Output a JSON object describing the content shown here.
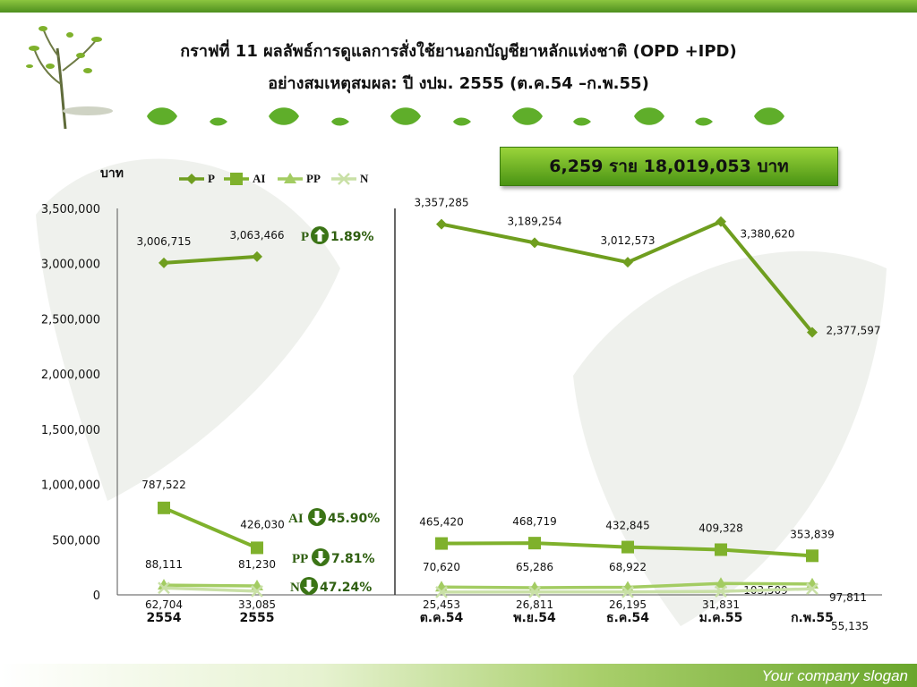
{
  "title": {
    "line1": "กราฟที่ 11 ผลลัพธ์การดูแลการสั่งใช้ยานอกบัญชียาหลักแห่งชาติ (OPD +IPD)",
    "line2": "อย่างสมเหตุสมผล: ปี งปม. 2555 (ต.ค.54 –ก.พ.55)"
  },
  "total_box": "6,259 ราย 18,019,053 บาท",
  "slogan": "Your company slogan",
  "chart_data": {
    "type": "line",
    "ylabel": "บาท",
    "ylim": [
      0,
      3500000
    ],
    "yticks": [
      "0",
      "500,000",
      "1,000,000",
      "1,500,000",
      "2,000,000",
      "2,500,000",
      "3,000,000",
      "3,500,000"
    ],
    "legend": [
      "P",
      "AI",
      "PP",
      "N"
    ],
    "legend_position": "top",
    "colors": {
      "P": "#6f9e1f",
      "AI": "#7fb12c",
      "PP": "#a3cc62",
      "N": "#c9e0a6"
    },
    "left_panel": {
      "categories": [
        "2554",
        "2555"
      ],
      "series": [
        {
          "name": "P",
          "values": [
            3006715,
            3063466
          ],
          "labels": [
            "3,006,715",
            "3,063,466"
          ]
        },
        {
          "name": "AI",
          "values": [
            787522,
            426030
          ],
          "labels": [
            "787,522",
            "426,030"
          ]
        },
        {
          "name": "PP",
          "values": [
            88111,
            81230
          ],
          "labels": [
            "88,111",
            "81,230"
          ]
        },
        {
          "name": "N",
          "values": [
            62704,
            33085
          ],
          "labels": [
            "62,704",
            "33,085"
          ]
        }
      ],
      "change_labels": [
        {
          "series": "P",
          "direction": "up",
          "text": "1.89%"
        },
        {
          "series": "AI",
          "direction": "down",
          "text": "45.90%"
        },
        {
          "series": "PP",
          "direction": "down",
          "text": "7.81%"
        },
        {
          "series": "N",
          "direction": "down",
          "text": "47.24%"
        }
      ]
    },
    "right_panel": {
      "categories": [
        "ต.ค.54",
        "พ.ย.54",
        "ธ.ค.54",
        "ม.ค.55",
        "ก.พ.55"
      ],
      "series": [
        {
          "name": "P",
          "values": [
            3357285,
            3189254,
            3012573,
            3380620,
            2377597
          ],
          "labels": [
            "3,357,285",
            "3,189,254",
            "3,012,573",
            "3,380,620",
            "2,377,597"
          ]
        },
        {
          "name": "AI",
          "values": [
            465420,
            468719,
            432845,
            409328,
            353839
          ],
          "labels": [
            "465,420",
            "468,719",
            "432,845",
            "409,328",
            "353,839"
          ]
        },
        {
          "name": "PP",
          "values": [
            70620,
            65286,
            68922,
            103509,
            97811
          ],
          "labels": [
            "70,620",
            "65,286",
            "68,922",
            "103,509",
            "97,811"
          ]
        },
        {
          "name": "N",
          "values": [
            25453,
            26811,
            26195,
            31831,
            55135
          ],
          "labels": [
            "25,453",
            "26,811",
            "26,195",
            "31,831",
            "55,135"
          ]
        }
      ]
    }
  }
}
